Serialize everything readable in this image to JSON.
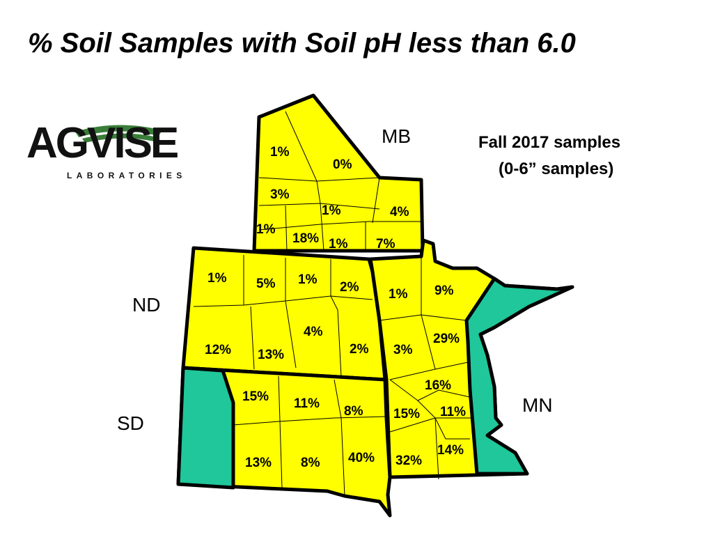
{
  "title": "% Soil Samples with Soil pH less than 6.0",
  "subtitle": {
    "line1": "Fall 2017 samples",
    "line2": "(0-6” samples)"
  },
  "logo": {
    "letters": "AGVISE",
    "sub": "LABORATORIES"
  },
  "state_labels": {
    "mb": "MB",
    "nd": "ND",
    "sd": "SD",
    "mn": "MN"
  },
  "colors": {
    "region_fill": "#ffff00",
    "no_data_fill": "#1fc79a",
    "border": "#000000",
    "logo_green": "#3a7d3a"
  },
  "regions": [
    {
      "state": "MB",
      "value": "1%"
    },
    {
      "state": "MB",
      "value": "0%"
    },
    {
      "state": "MB",
      "value": "3%"
    },
    {
      "state": "MB",
      "value": "1%"
    },
    {
      "state": "MB",
      "value": "4%"
    },
    {
      "state": "MB",
      "value": "1%"
    },
    {
      "state": "MB",
      "value": "18%"
    },
    {
      "state": "MB",
      "value": "1%"
    },
    {
      "state": "MB",
      "value": "7%"
    },
    {
      "state": "ND",
      "value": "1%"
    },
    {
      "state": "ND",
      "value": "5%"
    },
    {
      "state": "ND",
      "value": "1%"
    },
    {
      "state": "ND",
      "value": "2%"
    },
    {
      "state": "ND",
      "value": "4%"
    },
    {
      "state": "ND",
      "value": "12%"
    },
    {
      "state": "ND",
      "value": "13%"
    },
    {
      "state": "ND",
      "value": "2%"
    },
    {
      "state": "SD",
      "value": "15%"
    },
    {
      "state": "SD",
      "value": "11%"
    },
    {
      "state": "SD",
      "value": "8%"
    },
    {
      "state": "SD",
      "value": "13%"
    },
    {
      "state": "SD",
      "value": "8%"
    },
    {
      "state": "SD",
      "value": "40%"
    },
    {
      "state": "MN",
      "value": "1%"
    },
    {
      "state": "MN",
      "value": "9%"
    },
    {
      "state": "MN",
      "value": "29%"
    },
    {
      "state": "MN",
      "value": "3%"
    },
    {
      "state": "MN",
      "value": "16%"
    },
    {
      "state": "MN",
      "value": "15%"
    },
    {
      "state": "MN",
      "value": "11%"
    },
    {
      "state": "MN",
      "value": "32%"
    },
    {
      "state": "MN",
      "value": "14%"
    }
  ]
}
